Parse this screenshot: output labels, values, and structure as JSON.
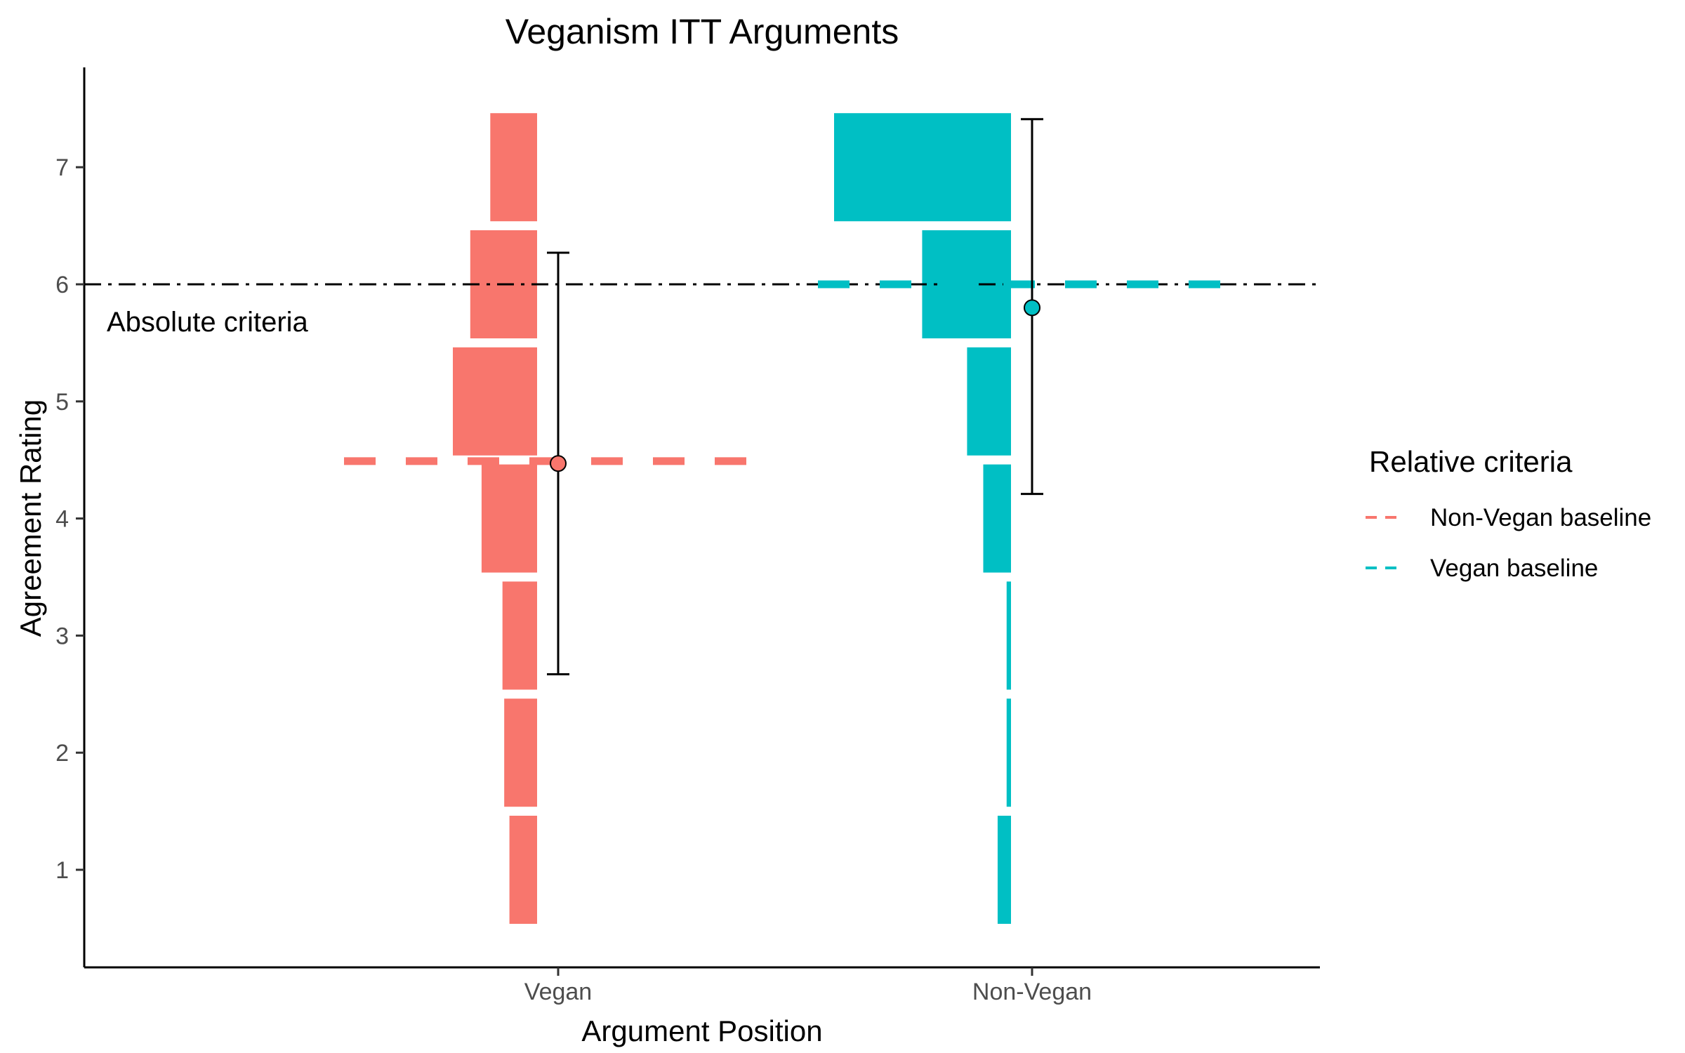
{
  "chart_data": {
    "type": "bar",
    "title": "Veganism ITT Arguments",
    "xlabel": "Argument Position",
    "ylabel": "Agreement Rating",
    "ylim": [
      0.2,
      7.9
    ],
    "yticks": [
      1,
      2,
      3,
      4,
      5,
      6,
      7
    ],
    "categories": [
      "Vegan",
      "Non-Vegan"
    ],
    "grid": false,
    "absolute_criteria": {
      "value": 6,
      "label": "Absolute criteria"
    },
    "distributions": [
      {
        "category": "Vegan",
        "color": "#F8766D",
        "ratings": [
          1,
          2,
          3,
          4,
          5,
          6,
          7
        ],
        "relative_width": [
          0.35,
          0.41,
          0.43,
          0.67,
          1.0,
          0.8,
          0.57
        ]
      },
      {
        "category": "Non-Vegan",
        "color": "#00BFC4",
        "ratings": [
          1,
          2,
          3,
          4,
          5,
          6,
          7
        ],
        "relative_width": [
          0.09,
          0.04,
          0.04,
          0.17,
          0.26,
          0.51,
          1.0
        ]
      }
    ],
    "points": [
      {
        "category": "Vegan",
        "mean": 4.47,
        "low": 2.67,
        "high": 6.27,
        "color": "#F8766D"
      },
      {
        "category": "Non-Vegan",
        "mean": 5.8,
        "low": 4.21,
        "high": 7.41,
        "color": "#00BFC4"
      }
    ],
    "baselines": [
      {
        "name": "Non-Vegan baseline",
        "value": 4.49,
        "color": "#F8766D",
        "category": "Vegan"
      },
      {
        "name": "Vegan baseline",
        "value": 6.0,
        "color": "#00BFC4",
        "category": "Non-Vegan"
      }
    ],
    "legend": {
      "title": "Relative criteria",
      "placement": "right",
      "entries": [
        {
          "label": "Non-Vegan baseline",
          "color": "#F8766D"
        },
        {
          "label": "Vegan baseline",
          "color": "#00BFC4"
        }
      ]
    }
  }
}
